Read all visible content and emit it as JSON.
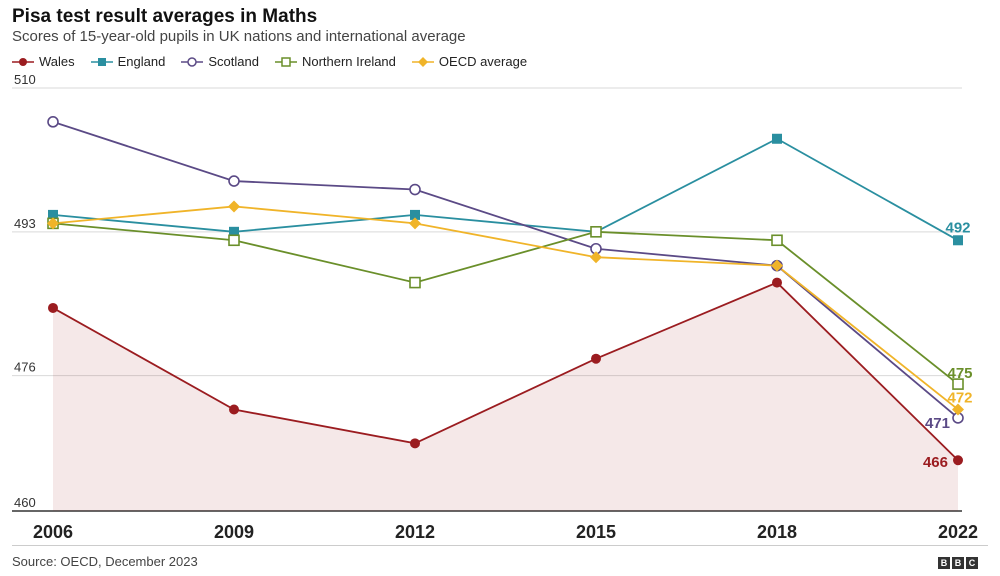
{
  "header": {
    "title": "Pisa test result averages in Maths",
    "subtitle": "Scores of 15-year-old pupils in UK nations and international average"
  },
  "footer": {
    "source": "Source: OECD, December 2023",
    "logo_letters": [
      "B",
      "B",
      "C"
    ]
  },
  "chart_data": {
    "type": "line",
    "title": "Pisa test result averages in Maths",
    "subtitle": "Scores of 15-year-old pupils in UK nations and international average",
    "x": [
      "2006",
      "2009",
      "2012",
      "2015",
      "2018",
      "2022"
    ],
    "ylim": [
      460,
      510
    ],
    "yticks": [
      "510",
      "493",
      "476",
      "460"
    ],
    "grid": true,
    "legend_position": "top-left",
    "series": [
      {
        "name": "Wales",
        "color": "#9b1c20",
        "marker": "filled-circle",
        "values": [
          484,
          472,
          468,
          478,
          487,
          466
        ],
        "end_label": "466",
        "area": true
      },
      {
        "name": "England",
        "color": "#2a8fa0",
        "marker": "filled-square",
        "values": [
          495,
          493,
          495,
          493,
          504,
          492
        ],
        "end_label": "492"
      },
      {
        "name": "Scotland",
        "color": "#5b4a86",
        "marker": "hollow-circle",
        "values": [
          506,
          499,
          498,
          491,
          489,
          471
        ],
        "end_label": "471"
      },
      {
        "name": "Northern Ireland",
        "color": "#6a8f2a",
        "marker": "hollow-square",
        "values": [
          494,
          492,
          487,
          493,
          492,
          475
        ],
        "end_label": "475"
      },
      {
        "name": "OECD average",
        "color": "#f0b429",
        "marker": "diamond",
        "values": [
          494,
          496,
          494,
          490,
          489,
          472
        ],
        "end_label": "472"
      }
    ]
  }
}
